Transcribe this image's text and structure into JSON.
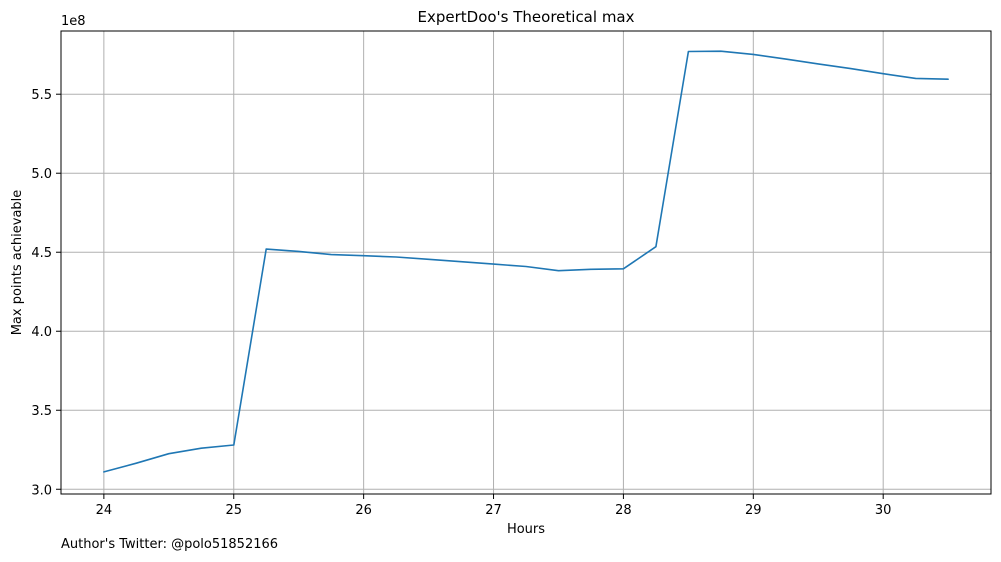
{
  "chart_data": {
    "type": "line",
    "title": "ExpertDoo's Theoretical max",
    "xlabel": "Hours",
    "ylabel": "Max points achievable",
    "y_offset_label": "1e8",
    "xlim": [
      23.67,
      30.83
    ],
    "ylim": [
      2.97,
      5.9
    ],
    "xticks": [
      24,
      25,
      26,
      27,
      28,
      29,
      30
    ],
    "xtick_labels": [
      "24",
      "25",
      "26",
      "27",
      "28",
      "29",
      "30"
    ],
    "yticks": [
      3.0,
      3.5,
      4.0,
      4.5,
      5.0,
      5.5
    ],
    "ytick_labels": [
      "3.0",
      "3.5",
      "4.0",
      "4.5",
      "5.0",
      "5.5"
    ],
    "grid": true,
    "series": [
      {
        "color": "#1f77b4",
        "x": [
          24.0,
          24.25,
          24.5,
          24.75,
          25.0,
          25.25,
          25.5,
          25.75,
          26.0,
          26.25,
          26.5,
          26.75,
          27.0,
          27.25,
          27.5,
          27.75,
          28.0,
          28.25,
          28.5,
          28.75,
          29.0,
          29.25,
          29.5,
          29.75,
          30.0,
          30.25,
          30.5
        ],
        "y": [
          3.11,
          3.165,
          3.225,
          3.26,
          3.28,
          4.52,
          4.505,
          4.485,
          4.478,
          4.47,
          4.455,
          4.44,
          4.425,
          4.41,
          4.383,
          4.392,
          4.395,
          4.535,
          5.77,
          5.772,
          5.752,
          5.722,
          5.692,
          5.662,
          5.63,
          5.6,
          5.595
        ]
      }
    ]
  },
  "footer": {
    "note": "Author's Twitter: @polo51852166"
  }
}
